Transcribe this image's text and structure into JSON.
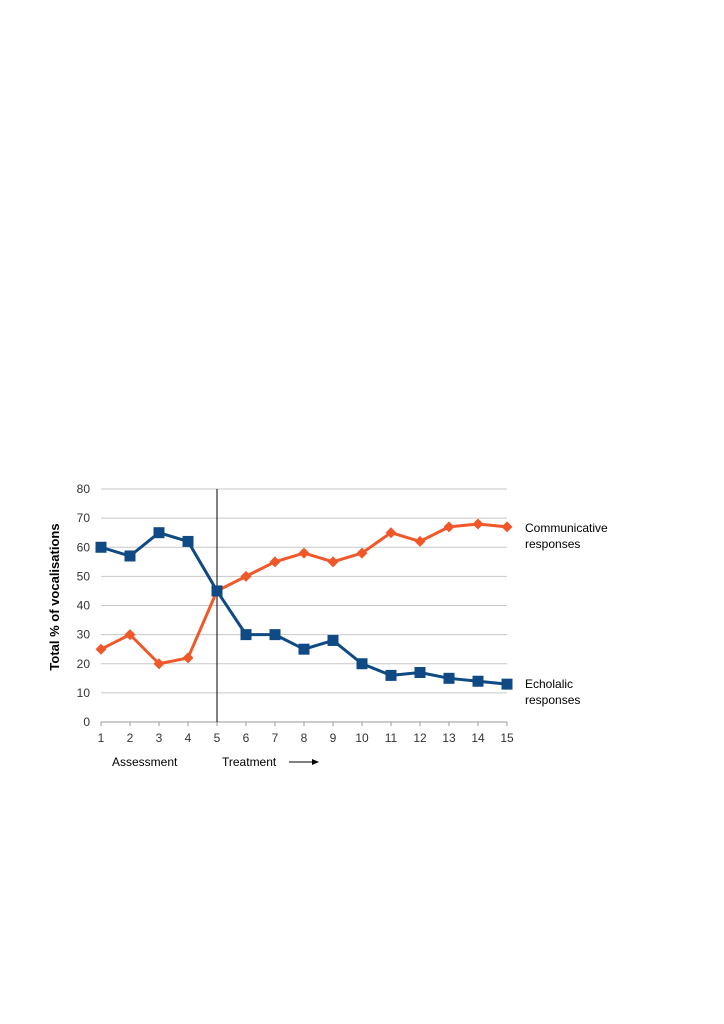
{
  "chart_data": {
    "type": "line",
    "title": "",
    "xlabel": "",
    "ylabel": "Total % of vocalisations",
    "x": [
      1,
      2,
      3,
      4,
      5,
      6,
      7,
      8,
      9,
      10,
      11,
      12,
      13,
      14,
      15
    ],
    "xlim": [
      1,
      15
    ],
    "ylim": [
      0,
      80
    ],
    "yticks": [
      0,
      10,
      20,
      30,
      40,
      50,
      60,
      70,
      80
    ],
    "grid": true,
    "legend": "none",
    "series": [
      {
        "name_line1": "Communicative",
        "name_line2": "responses",
        "color": "#f0582a",
        "marker": "diamond",
        "values": [
          25,
          30,
          20,
          22,
          45,
          50,
          55,
          58,
          55,
          58,
          65,
          62,
          67,
          68,
          67
        ]
      },
      {
        "name_line1": "Echolalic",
        "name_line2": "responses",
        "color": "#0f4a84",
        "marker": "square",
        "values": [
          60,
          57,
          65,
          62,
          45,
          30,
          30,
          25,
          28,
          20,
          16,
          17,
          15,
          14,
          13
        ]
      }
    ],
    "phase_line_x": 5,
    "annotations": {
      "assessment": "Assessment",
      "treatment": "Treatment"
    }
  }
}
